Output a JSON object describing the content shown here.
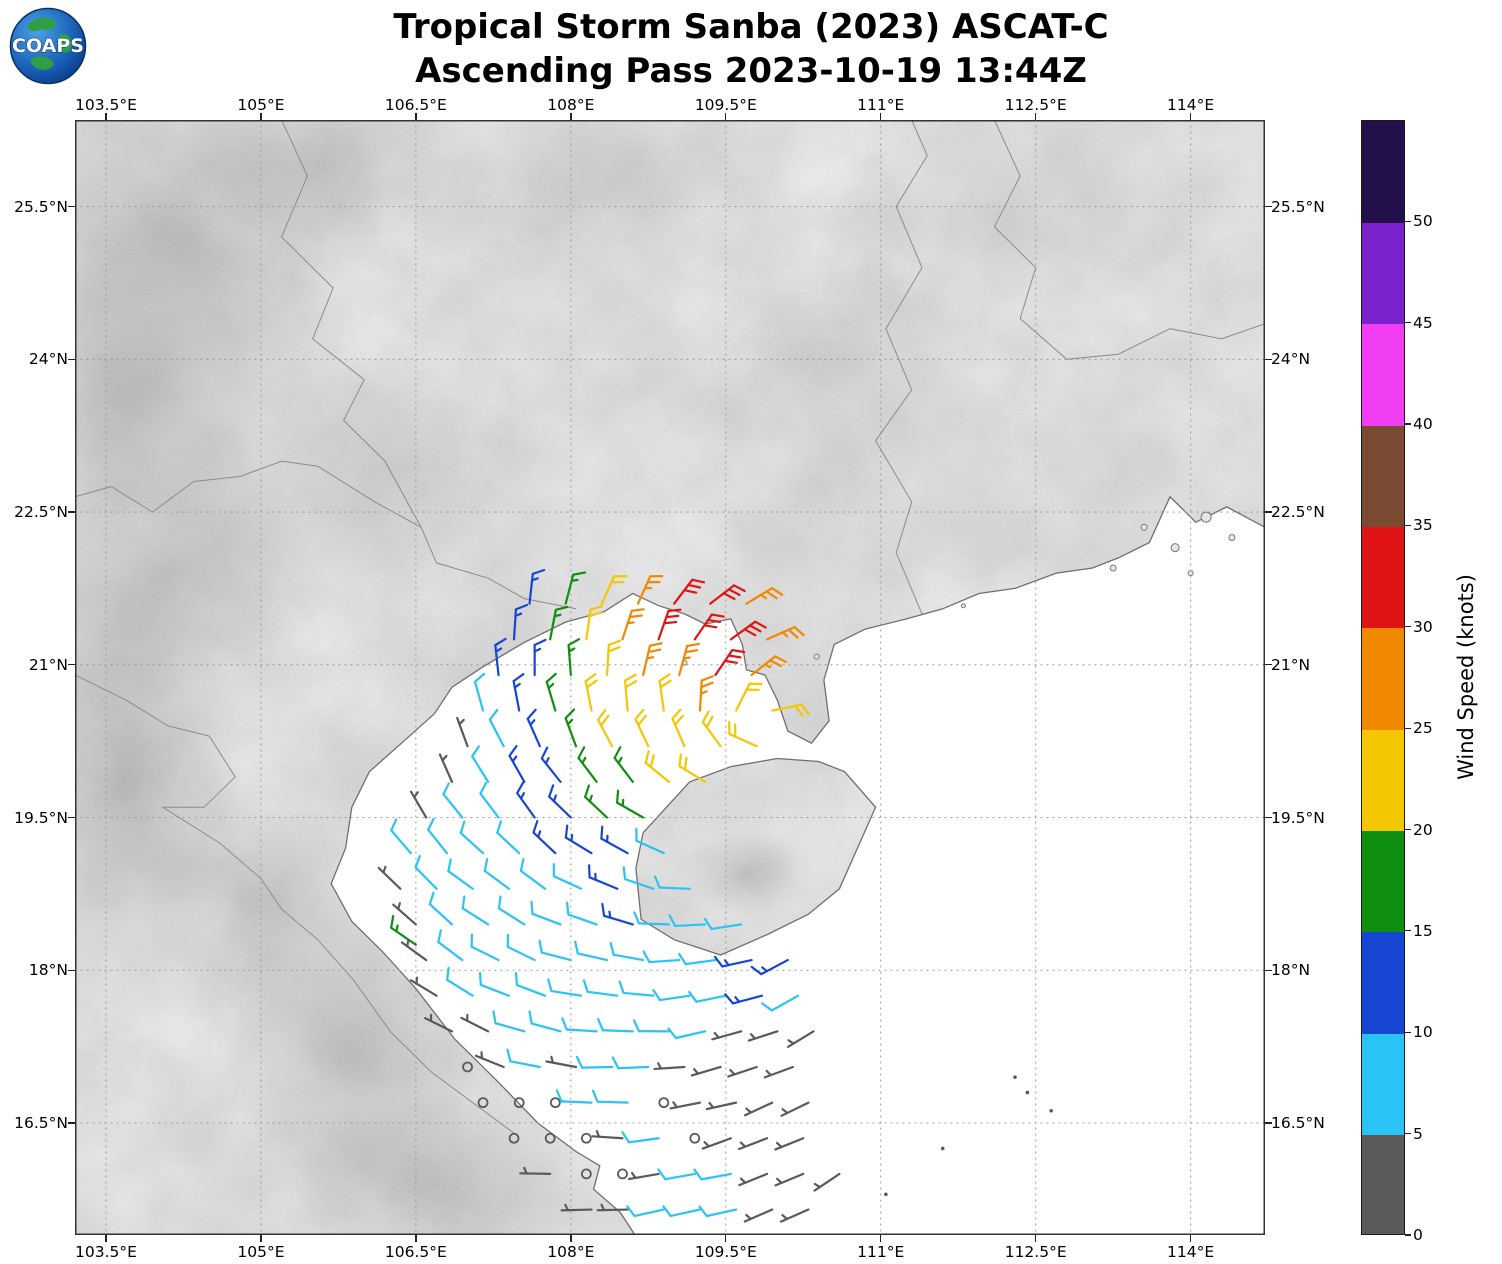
{
  "header": {
    "title_line1": "Tropical Storm Sanba (2023) ASCAT-C",
    "title_line2": "Ascending Pass 2023-10-19 13:44Z",
    "logo_text": "COAPS"
  },
  "map": {
    "extent": {
      "lon_min": 103.2,
      "lon_max": 114.72,
      "lat_min": 15.4,
      "lat_max": 26.35
    },
    "lon_ticks": [
      "103.5°E",
      "105°E",
      "106.5°E",
      "108°E",
      "109.5°E",
      "111°E",
      "112.5°E",
      "114°E"
    ],
    "lon_tick_values": [
      103.5,
      105,
      106.5,
      108,
      109.5,
      111,
      112.5,
      114
    ],
    "lat_ticks": [
      "25.5°N",
      "24°N",
      "22.5°N",
      "21°N",
      "19.5°N",
      "18°N",
      "16.5°N"
    ],
    "lat_tick_values": [
      25.5,
      24,
      22.5,
      21,
      19.5,
      18,
      16.5
    ],
    "coast": [
      [
        114.72,
        22.35
      ],
      [
        114.35,
        22.55
      ],
      [
        114.05,
        22.4
      ],
      [
        113.8,
        22.65
      ],
      [
        113.6,
        22.2
      ],
      [
        113.3,
        22.05
      ],
      [
        113.05,
        21.95
      ],
      [
        112.7,
        21.9
      ],
      [
        112.3,
        21.75
      ],
      [
        111.95,
        21.7
      ],
      [
        111.6,
        21.55
      ],
      [
        111.25,
        21.45
      ],
      [
        110.85,
        21.35
      ],
      [
        110.55,
        21.2
      ],
      [
        110.45,
        20.85
      ],
      [
        110.5,
        20.45
      ],
      [
        110.33,
        20.23
      ],
      [
        110.1,
        20.35
      ],
      [
        110.0,
        20.65
      ],
      [
        109.88,
        20.9
      ],
      [
        109.7,
        20.95
      ],
      [
        109.66,
        21.2
      ],
      [
        109.55,
        21.45
      ],
      [
        109.3,
        21.4
      ],
      [
        109.1,
        21.5
      ],
      [
        108.85,
        21.58
      ],
      [
        108.6,
        21.7
      ],
      [
        108.32,
        21.52
      ],
      [
        107.95,
        21.42
      ],
      [
        107.55,
        21.22
      ],
      [
        107.15,
        20.98
      ],
      [
        106.85,
        20.78
      ],
      [
        106.68,
        20.52
      ],
      [
        106.35,
        20.22
      ],
      [
        106.05,
        19.95
      ],
      [
        105.88,
        19.6
      ],
      [
        105.82,
        19.2
      ],
      [
        105.68,
        18.85
      ],
      [
        105.88,
        18.48
      ],
      [
        106.18,
        18.18
      ],
      [
        106.5,
        17.82
      ],
      [
        106.88,
        17.32
      ],
      [
        107.3,
        16.9
      ],
      [
        107.68,
        16.5
      ],
      [
        108.05,
        16.22
      ],
      [
        108.28,
        16.08
      ],
      [
        108.22,
        15.85
      ],
      [
        108.48,
        15.62
      ],
      [
        108.62,
        15.4
      ]
    ],
    "hainan": [
      [
        108.68,
        18.5
      ],
      [
        108.63,
        19.0
      ],
      [
        108.7,
        19.35
      ],
      [
        109.15,
        19.85
      ],
      [
        109.55,
        20.0
      ],
      [
        110.0,
        20.08
      ],
      [
        110.4,
        20.05
      ],
      [
        110.65,
        19.95
      ],
      [
        110.95,
        19.6
      ],
      [
        110.6,
        18.8
      ],
      [
        110.3,
        18.55
      ],
      [
        109.9,
        18.35
      ],
      [
        109.45,
        18.15
      ],
      [
        109.0,
        18.3
      ],
      [
        108.68,
        18.5
      ]
    ],
    "islets": [
      [
        113.55,
        22.35,
        3
      ],
      [
        113.85,
        22.15,
        4
      ],
      [
        114.15,
        22.45,
        5
      ],
      [
        114.4,
        22.25,
        3
      ],
      [
        113.25,
        21.95,
        3
      ],
      [
        114.0,
        21.9,
        2.5
      ],
      [
        109.1,
        21.02,
        2.5
      ],
      [
        110.38,
        21.08,
        2.5
      ],
      [
        111.8,
        21.58,
        2
      ]
    ],
    "borders": [
      [
        [
          108.05,
          21.55
        ],
        [
          107.55,
          21.65
        ],
        [
          107.2,
          21.85
        ],
        [
          106.7,
          22.0
        ],
        [
          106.55,
          22.35
        ],
        [
          106.1,
          22.6
        ],
        [
          105.55,
          22.95
        ],
        [
          105.2,
          23.0
        ],
        [
          104.8,
          22.85
        ],
        [
          104.35,
          22.8
        ],
        [
          103.95,
          22.5
        ],
        [
          103.55,
          22.75
        ],
        [
          103.2,
          22.65
        ]
      ],
      [
        [
          103.2,
          20.9
        ],
        [
          103.7,
          20.65
        ],
        [
          104.1,
          20.4
        ],
        [
          104.5,
          20.3
        ],
        [
          104.75,
          19.9
        ],
        [
          104.45,
          19.6
        ],
        [
          104.05,
          19.6
        ],
        [
          104.6,
          19.25
        ],
        [
          105.0,
          18.9
        ],
        [
          105.2,
          18.6
        ],
        [
          105.55,
          18.3
        ],
        [
          105.9,
          17.9
        ],
        [
          106.25,
          17.4
        ],
        [
          106.65,
          17.0
        ],
        [
          107.45,
          16.4
        ]
      ],
      [
        [
          111.4,
          21.5
        ],
        [
          111.15,
          22.1
        ],
        [
          111.3,
          22.6
        ],
        [
          110.95,
          23.2
        ],
        [
          111.3,
          23.7
        ],
        [
          111.05,
          24.3
        ],
        [
          111.4,
          24.9
        ],
        [
          111.15,
          25.5
        ],
        [
          111.45,
          26.0
        ],
        [
          111.3,
          26.35
        ]
      ],
      [
        [
          105.2,
          26.35
        ],
        [
          105.45,
          25.8
        ],
        [
          105.2,
          25.2
        ],
        [
          105.7,
          24.7
        ],
        [
          105.5,
          24.2
        ],
        [
          106.0,
          23.8
        ],
        [
          105.8,
          23.4
        ],
        [
          106.2,
          23.0
        ],
        [
          106.55,
          22.35
        ]
      ],
      [
        [
          112.1,
          26.35
        ],
        [
          112.35,
          25.8
        ],
        [
          112.1,
          25.3
        ],
        [
          112.5,
          24.9
        ],
        [
          112.35,
          24.4
        ],
        [
          112.8,
          24.0
        ],
        [
          113.3,
          24.05
        ],
        [
          113.8,
          24.3
        ],
        [
          114.3,
          24.2
        ],
        [
          114.72,
          24.35
        ]
      ]
    ]
  },
  "colorbar": {
    "label": "Wind Speed (knots)",
    "vmin": 0,
    "vmax": 55,
    "ticks": [
      0,
      5,
      10,
      15,
      20,
      25,
      30,
      35,
      40,
      45,
      50
    ],
    "segments": [
      {
        "from": 0,
        "to": 5,
        "color": "#5a5a5a"
      },
      {
        "from": 5,
        "to": 10,
        "color": "#29c4f5"
      },
      {
        "from": 10,
        "to": 15,
        "color": "#1746d3"
      },
      {
        "from": 15,
        "to": 20,
        "color": "#0f8f0f"
      },
      {
        "from": 20,
        "to": 25,
        "color": "#f5c700"
      },
      {
        "from": 25,
        "to": 30,
        "color": "#f08800"
      },
      {
        "from": 30,
        "to": 35,
        "color": "#e01414"
      },
      {
        "from": 35,
        "to": 40,
        "color": "#7b4a33"
      },
      {
        "from": 40,
        "to": 45,
        "color": "#f23ef2"
      },
      {
        "from": 45,
        "to": 50,
        "color": "#7a22cc"
      },
      {
        "from": 50,
        "to": 55,
        "color": "#23104a"
      }
    ]
  },
  "chart_data": {
    "type": "wind_barb_map",
    "title": "Tropical Storm Sanba (2023) ASCAT-C Ascending Pass 2023-10-19 13:44Z",
    "units": "knots",
    "legend_position": "right",
    "grid": true,
    "xlabel": "longitude",
    "ylabel": "latitude",
    "xlim": [
      103.2,
      114.72
    ],
    "ylim": [
      15.4,
      26.35
    ],
    "flow": {
      "pattern": "cyclonic_counterclockwise",
      "center_lon": 109.9,
      "center_lat": 20.3,
      "inflow_deg": 20
    },
    "barbs": [
      [
        107.6,
        21.6,
        13
      ],
      [
        107.95,
        21.6,
        17
      ],
      [
        108.3,
        21.6,
        22
      ],
      [
        108.65,
        21.6,
        27
      ],
      [
        109.0,
        21.6,
        32
      ],
      [
        109.35,
        21.6,
        32
      ],
      [
        109.7,
        21.6,
        27
      ],
      [
        107.45,
        21.25,
        13
      ],
      [
        107.8,
        21.25,
        17
      ],
      [
        108.15,
        21.25,
        22
      ],
      [
        108.5,
        21.25,
        27
      ],
      [
        108.85,
        21.25,
        32
      ],
      [
        109.2,
        21.25,
        32
      ],
      [
        109.55,
        21.25,
        32
      ],
      [
        109.9,
        21.25,
        27
      ],
      [
        107.3,
        20.9,
        13
      ],
      [
        107.65,
        20.9,
        13
      ],
      [
        108.0,
        20.9,
        17
      ],
      [
        108.35,
        20.9,
        22
      ],
      [
        108.7,
        20.9,
        27
      ],
      [
        109.05,
        20.9,
        27
      ],
      [
        109.4,
        20.9,
        32
      ],
      [
        109.75,
        20.9,
        27
      ],
      [
        107.15,
        20.55,
        8
      ],
      [
        107.5,
        20.55,
        13
      ],
      [
        107.85,
        20.55,
        17
      ],
      [
        108.2,
        20.55,
        22
      ],
      [
        108.55,
        20.55,
        22
      ],
      [
        108.9,
        20.55,
        22
      ],
      [
        109.25,
        20.55,
        27
      ],
      [
        109.6,
        20.55,
        22
      ],
      [
        109.95,
        20.55,
        22
      ],
      [
        107.0,
        20.2,
        3
      ],
      [
        107.35,
        20.2,
        8
      ],
      [
        107.7,
        20.2,
        13
      ],
      [
        108.05,
        20.2,
        17
      ],
      [
        108.4,
        20.2,
        22
      ],
      [
        108.75,
        20.2,
        22
      ],
      [
        109.1,
        20.2,
        22
      ],
      [
        109.45,
        20.2,
        22
      ],
      [
        109.8,
        20.2,
        22
      ],
      [
        106.85,
        19.85,
        3
      ],
      [
        107.2,
        19.85,
        8
      ],
      [
        107.55,
        19.85,
        13
      ],
      [
        107.9,
        19.85,
        13
      ],
      [
        108.25,
        19.85,
        17
      ],
      [
        108.6,
        19.85,
        17
      ],
      [
        108.95,
        19.85,
        22
      ],
      [
        109.3,
        19.85,
        22
      ],
      [
        106.6,
        19.5,
        3
      ],
      [
        106.95,
        19.5,
        8
      ],
      [
        107.3,
        19.5,
        8
      ],
      [
        107.65,
        19.5,
        13
      ],
      [
        108.0,
        19.5,
        13
      ],
      [
        108.35,
        19.5,
        17
      ],
      [
        108.7,
        19.5,
        17
      ],
      [
        106.45,
        19.15,
        8
      ],
      [
        106.8,
        19.15,
        8
      ],
      [
        107.15,
        19.15,
        8
      ],
      [
        107.5,
        19.15,
        8
      ],
      [
        107.85,
        19.15,
        13
      ],
      [
        108.2,
        19.15,
        13
      ],
      [
        108.55,
        19.15,
        13
      ],
      [
        108.9,
        19.15,
        8
      ],
      [
        106.35,
        18.8,
        3
      ],
      [
        106.7,
        18.8,
        8
      ],
      [
        107.05,
        18.8,
        8
      ],
      [
        107.4,
        18.8,
        8
      ],
      [
        107.75,
        18.8,
        8
      ],
      [
        108.1,
        18.8,
        8
      ],
      [
        108.45,
        18.8,
        13
      ],
      [
        108.8,
        18.8,
        8
      ],
      [
        109.15,
        18.8,
        8
      ],
      [
        106.5,
        18.45,
        3
      ],
      [
        106.85,
        18.45,
        8
      ],
      [
        107.2,
        18.45,
        8
      ],
      [
        107.55,
        18.45,
        8
      ],
      [
        107.9,
        18.45,
        8
      ],
      [
        108.25,
        18.45,
        8
      ],
      [
        108.6,
        18.45,
        13
      ],
      [
        108.95,
        18.45,
        8
      ],
      [
        109.3,
        18.45,
        8
      ],
      [
        109.65,
        18.45,
        8
      ],
      [
        106.5,
        18.25,
        17
      ],
      [
        106.6,
        18.1,
        3
      ],
      [
        106.95,
        18.1,
        8
      ],
      [
        107.3,
        18.1,
        8
      ],
      [
        107.65,
        18.1,
        8
      ],
      [
        108.0,
        18.1,
        8
      ],
      [
        108.35,
        18.1,
        8
      ],
      [
        108.7,
        18.1,
        8
      ],
      [
        109.05,
        18.1,
        8
      ],
      [
        109.4,
        18.1,
        8
      ],
      [
        109.75,
        18.1,
        13
      ],
      [
        110.1,
        18.1,
        13
      ],
      [
        106.7,
        17.75,
        3
      ],
      [
        107.05,
        17.75,
        8
      ],
      [
        107.4,
        17.75,
        8
      ],
      [
        107.75,
        17.75,
        8
      ],
      [
        108.1,
        17.75,
        8
      ],
      [
        108.45,
        17.75,
        8
      ],
      [
        108.8,
        17.75,
        8
      ],
      [
        109.15,
        17.75,
        8
      ],
      [
        109.5,
        17.75,
        8
      ],
      [
        109.85,
        17.75,
        13
      ],
      [
        110.2,
        17.75,
        8
      ],
      [
        106.85,
        17.4,
        3
      ],
      [
        107.2,
        17.4,
        3
      ],
      [
        107.55,
        17.4,
        8
      ],
      [
        107.9,
        17.4,
        8
      ],
      [
        108.25,
        17.4,
        8
      ],
      [
        108.6,
        17.4,
        8
      ],
      [
        108.95,
        17.4,
        8
      ],
      [
        109.3,
        17.4,
        8
      ],
      [
        109.65,
        17.4,
        3
      ],
      [
        110.0,
        17.4,
        3
      ],
      [
        110.35,
        17.4,
        3
      ],
      [
        107.0,
        17.05,
        0
      ],
      [
        107.35,
        17.05,
        3
      ],
      [
        107.7,
        17.05,
        8
      ],
      [
        108.05,
        17.05,
        3
      ],
      [
        108.4,
        17.05,
        8
      ],
      [
        108.75,
        17.05,
        8
      ],
      [
        109.1,
        17.05,
        3
      ],
      [
        109.45,
        17.05,
        3
      ],
      [
        109.8,
        17.05,
        3
      ],
      [
        110.15,
        17.05,
        3
      ],
      [
        107.15,
        16.7,
        0
      ],
      [
        107.5,
        16.7,
        0
      ],
      [
        107.85,
        16.7,
        0
      ],
      [
        108.2,
        16.7,
        8
      ],
      [
        108.55,
        16.7,
        8
      ],
      [
        108.9,
        16.7,
        0
      ],
      [
        109.25,
        16.7,
        3
      ],
      [
        109.6,
        16.7,
        3
      ],
      [
        109.95,
        16.7,
        3
      ],
      [
        110.3,
        16.7,
        3
      ],
      [
        107.45,
        16.35,
        0
      ],
      [
        107.8,
        16.35,
        0
      ],
      [
        108.15,
        16.35,
        0
      ],
      [
        108.5,
        16.35,
        3
      ],
      [
        108.85,
        16.35,
        8
      ],
      [
        109.2,
        16.35,
        0
      ],
      [
        109.55,
        16.35,
        3
      ],
      [
        109.9,
        16.35,
        3
      ],
      [
        110.25,
        16.35,
        3
      ],
      [
        107.8,
        16.0,
        3
      ],
      [
        108.15,
        16.0,
        0
      ],
      [
        108.5,
        16.0,
        0
      ],
      [
        108.85,
        16.0,
        3
      ],
      [
        109.2,
        16.0,
        8
      ],
      [
        109.55,
        16.0,
        8
      ],
      [
        109.9,
        16.0,
        3
      ],
      [
        110.25,
        16.0,
        3
      ],
      [
        110.6,
        16.0,
        3
      ],
      [
        108.2,
        15.65,
        3
      ],
      [
        108.55,
        15.65,
        3
      ],
      [
        108.9,
        15.65,
        8
      ],
      [
        109.25,
        15.65,
        8
      ],
      [
        109.6,
        15.65,
        8
      ],
      [
        109.95,
        15.65,
        3
      ],
      [
        110.3,
        15.65,
        3
      ]
    ],
    "calm_dots": [
      [
        112.3,
        16.95
      ],
      [
        112.42,
        16.8
      ],
      [
        112.65,
        16.62
      ],
      [
        111.6,
        16.25
      ],
      [
        111.05,
        15.8
      ]
    ]
  }
}
